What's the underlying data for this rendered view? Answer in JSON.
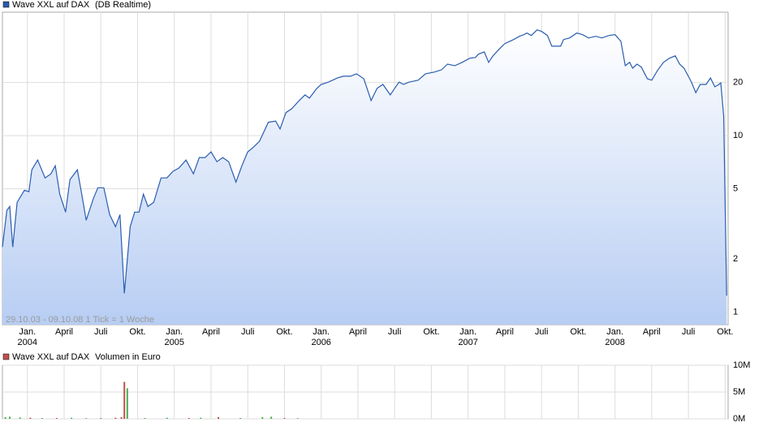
{
  "chart_data": [
    {
      "type": "area",
      "log_scale": true,
      "grid": true,
      "annotation": "29.10.03 - 09.10.08   1 Tick = 1 Woche",
      "series": [
        {
          "name": "Wave XXL auf DAX",
          "source": "(DB Realtime)",
          "color": "#2a5db0",
          "values": [
            2.34,
            3.77,
            3.97,
            2.34,
            4.19,
            4.91,
            4.81,
            6.4,
            7.27,
            5.76,
            6.07,
            6.75,
            4.66,
            3.69,
            5.64,
            6.4,
            4.66,
            3.32,
            4.42,
            5.07,
            5.07,
            3.57,
            3.05,
            3.57,
            1.28,
            3.05,
            3.69,
            3.69,
            4.66,
            3.97,
            4.19,
            5.76,
            5.76,
            6.27,
            6.54,
            7.27,
            6.07,
            7.51,
            7.51,
            8.09,
            7.12,
            7.51,
            7.12,
            5.46,
            6.75,
            8.09,
            8.62,
            9.29,
            11.9,
            12.1,
            10.9,
            13.5,
            14.2,
            15.8,
            17.0,
            16.3,
            18.5,
            19.5,
            20.1,
            21.2,
            21.7,
            21.7,
            22.4,
            21.0,
            15.8,
            18.5,
            19.5,
            17.0,
            18.5,
            20.1,
            19.5,
            20.1,
            20.6,
            22.4,
            22.9,
            23.6,
            25.4,
            24.9,
            26.0,
            27.4,
            27.7,
            28.9,
            29.8,
            26.0,
            28.3,
            30.8,
            33.2,
            35.0,
            36.5,
            37.3,
            38.1,
            36.9,
            39.7,
            38.9,
            36.9,
            32.1,
            32.1,
            35.0,
            35.7,
            38.1,
            37.3,
            35.7,
            36.5,
            35.7,
            36.9,
            37.3,
            34.2,
            24.9,
            26.0,
            24.1,
            25.4,
            24.4,
            21.0,
            20.6,
            23.4,
            26.0,
            27.4,
            28.3,
            25.4,
            24.1,
            20.1,
            17.5,
            19.5,
            19.5,
            21.2,
            18.9,
            19.3,
            19.9,
            12.8,
            1.24
          ]
        }
      ],
      "x": [
        2003.83,
        2003.86,
        2003.88,
        2003.9,
        2003.93,
        2003.98,
        2004.01,
        2004.03,
        2004.07,
        2004.12,
        2004.16,
        2004.19,
        2004.22,
        2004.26,
        2004.29,
        2004.34,
        2004.37,
        2004.4,
        2004.45,
        2004.48,
        2004.52,
        2004.56,
        2004.6,
        2004.63,
        2004.66,
        2004.7,
        2004.73,
        2004.76,
        2004.79,
        2004.82,
        2004.86,
        2004.91,
        2004.95,
        2004.99,
        2005.03,
        2005.08,
        2005.13,
        2005.17,
        2005.21,
        2005.25,
        2005.29,
        2005.33,
        2005.37,
        2005.42,
        2005.46,
        2005.5,
        2005.54,
        2005.58,
        2005.64,
        2005.69,
        2005.72,
        2005.76,
        2005.8,
        2005.85,
        2005.89,
        2005.92,
        2005.97,
        2006.0,
        2006.05,
        2006.11,
        2006.15,
        2006.2,
        2006.24,
        2006.29,
        2006.34,
        2006.38,
        2006.42,
        2006.47,
        2006.5,
        2006.53,
        2006.56,
        2006.6,
        2006.66,
        2006.71,
        2006.77,
        2006.82,
        2006.86,
        2006.91,
        2006.96,
        2007.01,
        2007.05,
        2007.07,
        2007.11,
        2007.14,
        2007.17,
        2007.21,
        2007.25,
        2007.31,
        2007.35,
        2007.38,
        2007.4,
        2007.43,
        2007.47,
        2007.5,
        2007.54,
        2007.57,
        2007.63,
        2007.65,
        2007.69,
        2007.74,
        2007.78,
        2007.82,
        2007.87,
        2007.91,
        2007.96,
        2008.0,
        2008.04,
        2008.07,
        2008.1,
        2008.12,
        2008.15,
        2008.18,
        2008.22,
        2008.25,
        2008.29,
        2008.33,
        2008.37,
        2008.41,
        2008.44,
        2008.47,
        2008.52,
        2008.55,
        2008.58,
        2008.62,
        2008.65,
        2008.68,
        2008.7,
        2008.72,
        2008.74,
        2008.76
      ],
      "xlim": [
        2003.83,
        2008.77
      ],
      "xticks": [
        {
          "value": 2004.0,
          "label": "Jan."
        },
        {
          "value": 2004.25,
          "label": "April"
        },
        {
          "value": 2004.5,
          "label": "Juli"
        },
        {
          "value": 2004.75,
          "label": "Okt."
        },
        {
          "value": 2005.0,
          "label": "Jan."
        },
        {
          "value": 2005.25,
          "label": "April"
        },
        {
          "value": 2005.5,
          "label": "Juli"
        },
        {
          "value": 2005.75,
          "label": "Okt."
        },
        {
          "value": 2006.0,
          "label": "Jan."
        },
        {
          "value": 2006.25,
          "label": "April"
        },
        {
          "value": 2006.5,
          "label": "Juli"
        },
        {
          "value": 2006.75,
          "label": "Okt."
        },
        {
          "value": 2007.0,
          "label": "Jan."
        },
        {
          "value": 2007.25,
          "label": "April"
        },
        {
          "value": 2007.5,
          "label": "Juli"
        },
        {
          "value": 2007.75,
          "label": "Okt."
        },
        {
          "value": 2008.0,
          "label": "Jan."
        },
        {
          "value": 2008.25,
          "label": "April"
        },
        {
          "value": 2008.5,
          "label": "Juli"
        },
        {
          "value": 2008.75,
          "label": "Okt."
        }
      ],
      "year_labels": [
        2004,
        2005,
        2006,
        2007,
        2008
      ],
      "ylim": [
        0.85,
        50
      ],
      "yticks": [
        1,
        2,
        5,
        10,
        20
      ]
    },
    {
      "type": "bar",
      "grid": true,
      "series": [
        {
          "name": "Wave XXL auf DAX",
          "unit_label": "Volumen in Euro",
          "color": "#c0504d",
          "x": [
            2003.85,
            2003.88,
            2003.95,
            2004.02,
            2004.1,
            2004.2,
            2004.3,
            2004.4,
            2004.5,
            2004.6,
            2004.64,
            2004.66,
            2004.68,
            2004.8,
            2004.95,
            2005.1,
            2005.18,
            2005.3,
            2005.45,
            2005.6,
            2005.66,
            2005.75,
            2005.84
          ],
          "values": [
            300000,
            400000,
            250000,
            200000,
            150000,
            150000,
            200000,
            100000,
            150000,
            200000,
            300000,
            6900000,
            5700000,
            150000,
            200000,
            150000,
            200000,
            300000,
            150000,
            300000,
            400000,
            150000,
            100000
          ],
          "colors": [
            "#4caf50",
            "#4caf50",
            "#4caf50",
            "#c0504d",
            "#4caf50",
            "#c0504d",
            "#4caf50",
            "#c0504d",
            "#4caf50",
            "#c0504d",
            "#c0504d",
            "#c0504d",
            "#4caf50",
            "#4caf50",
            "#4caf50",
            "#c0504d",
            "#4caf50",
            "#c0504d",
            "#4caf50",
            "#4caf50",
            "#4caf50",
            "#c0504d",
            "#c0504d"
          ]
        }
      ],
      "ylim": [
        0,
        10000000
      ],
      "yticks": [
        {
          "value": 0,
          "label": "0M"
        },
        {
          "value": 5000000,
          "label": "5M"
        },
        {
          "value": 10000000,
          "label": "10M"
        }
      ]
    }
  ]
}
